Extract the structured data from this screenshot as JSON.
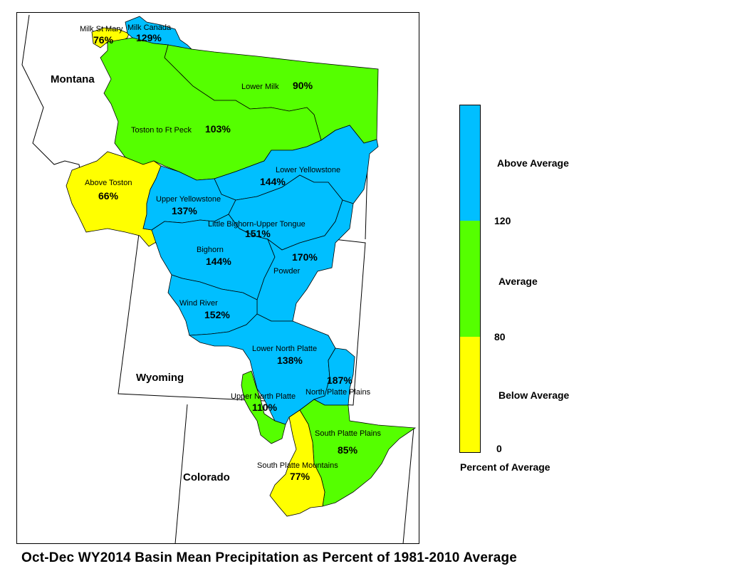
{
  "title": "Oct-Dec WY2014 Basin Mean Precipitation as Percent of 1981-2010 Average",
  "states": {
    "montana": "Montana",
    "wyoming": "Wyoming",
    "colorado": "Colorado"
  },
  "colors": {
    "above": "#00bfff",
    "average": "#55ff00",
    "below": "#ffff00",
    "border": "#000000"
  },
  "basins": {
    "milk_st_mary": {
      "name": "Milk St Mary",
      "pct": "76%",
      "category": "below"
    },
    "milk_canada": {
      "name": "Milk Canada",
      "pct": "129%",
      "category": "above"
    },
    "lower_milk": {
      "name": "Lower Milk",
      "pct": "90%",
      "category": "average"
    },
    "toston_ft_peck": {
      "name": "Toston to Ft Peck",
      "pct": "103%",
      "category": "average"
    },
    "above_toston": {
      "name": "Above Toston",
      "pct": "66%",
      "category": "below"
    },
    "lower_yellowstone": {
      "name": "Lower Yellowstone",
      "pct": "144%",
      "category": "above"
    },
    "upper_yellowstone": {
      "name": "Upper Yellowstone",
      "pct": "137%",
      "category": "above"
    },
    "little_bighorn": {
      "name": "Little Bighorn-Upper Tongue",
      "pct": "151%",
      "category": "above"
    },
    "bighorn": {
      "name": "Bighorn",
      "pct": "144%",
      "category": "above"
    },
    "powder": {
      "name": "Powder",
      "pct": "170%",
      "category": "above"
    },
    "wind_river": {
      "name": "Wind River",
      "pct": "152%",
      "category": "above"
    },
    "lower_north_platte": {
      "name": "Lower North Platte",
      "pct": "138%",
      "category": "above"
    },
    "north_platte_plains": {
      "name": "North Platte Plains",
      "pct": "187%",
      "category": "above"
    },
    "upper_north_platte": {
      "name": "Upper North Platte",
      "pct": "110%",
      "category": "average"
    },
    "south_platte_plains": {
      "name": "South Platte Plains",
      "pct": "85%",
      "category": "average"
    },
    "south_platte_mountains": {
      "name": "South Platte Mountains",
      "pct": "77%",
      "category": "below"
    }
  },
  "legend": {
    "title": "Percent of Average",
    "classes": [
      {
        "label": "Above Average",
        "min": 120,
        "color": "#00bfff"
      },
      {
        "label": "Average",
        "min": 80,
        "max": 120,
        "color": "#55ff00"
      },
      {
        "label": "Below Average",
        "min": 0,
        "max": 80,
        "color": "#ffff00"
      }
    ],
    "breaks": [
      "120",
      "80",
      "0"
    ]
  }
}
